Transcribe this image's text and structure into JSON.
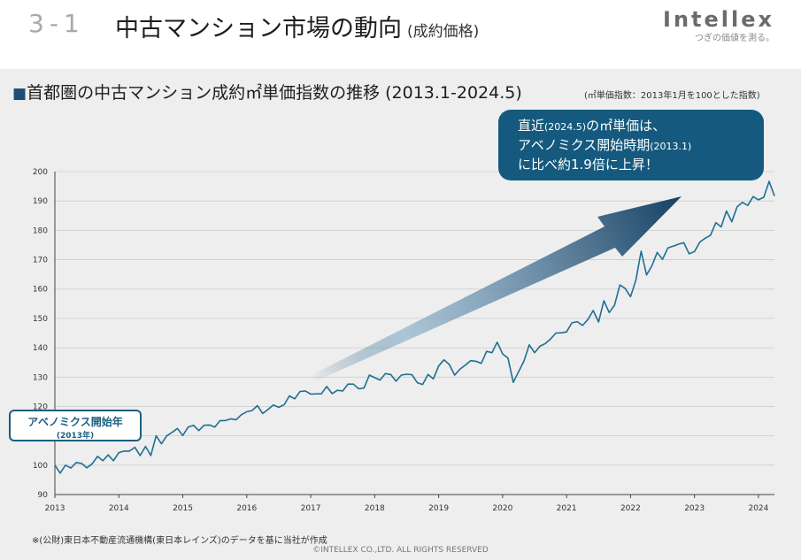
{
  "header": {
    "section_number": "3-1",
    "section_title": "中古マンション市場の動向",
    "section_subtitle": "(成約価格)",
    "logo_text": "Intellex",
    "logo_tagline": "つぎの価値を測る。"
  },
  "chart_title": "首都圏の中古マンション成約㎡単価指数の推移 (2013.1-2024.5)",
  "chart_note": "(㎡単価指数：2013年1月を100とした指数)",
  "callout": {
    "line1": "直近",
    "line1_small": "(2024.5)",
    "line1_rest": "の㎡単価は、",
    "line2": "アベノミクス開始時期",
    "line2_small": "(2013.1)",
    "line3": "に比べ約1.9倍に上昇！"
  },
  "abenomics_box": {
    "label": "アベノミクス開始年",
    "sublabel": "(2013年)"
  },
  "footnote": "※(公財)東日本不動産流通機構(東日本レインズ)のデータを基に当社が作成",
  "copyright": "©INTELLEX CO.,LTD. ALL RIGHTS RESERVED",
  "colors": {
    "line": "#1f6f92",
    "accent": "#155a7e",
    "panel": "#eeeeee",
    "grid": "#cccccc"
  },
  "chart_data": {
    "type": "line",
    "title": "首都圏の中古マンション成約㎡単価指数の推移 (2013.1-2024.5)",
    "xlabel": "",
    "ylabel": "",
    "ylim": [
      90,
      200
    ],
    "yticks": [
      90,
      100,
      110,
      120,
      130,
      140,
      150,
      160,
      170,
      180,
      190,
      200
    ],
    "xticks": [
      "2013",
      "2014",
      "2015",
      "2016",
      "2017",
      "2018",
      "2019",
      "2020",
      "2021",
      "2022",
      "2023",
      "2024"
    ],
    "x_start": "2013-01",
    "series": [
      {
        "name": "成約㎡単価指数",
        "values": [
          100.0,
          97.3,
          100.0,
          99.0,
          100.9,
          100.6,
          99.1,
          100.5,
          103.0,
          101.5,
          103.5,
          101.5,
          104.3,
          104.8,
          104.8,
          106.1,
          103.3,
          106.4,
          103.3,
          110.0,
          107.3,
          110.0,
          111.2,
          112.5,
          110.1,
          113.0,
          113.6,
          111.8,
          113.6,
          113.7,
          113.0,
          115.2,
          115.2,
          115.8,
          115.5,
          117.2,
          118.2,
          118.6,
          120.3,
          117.6,
          119.0,
          120.5,
          119.7,
          120.6,
          123.6,
          122.6,
          125.1,
          125.3,
          124.2,
          124.3,
          124.3,
          126.8,
          124.4,
          125.5,
          125.3,
          127.6,
          127.6,
          126.0,
          126.3,
          130.7,
          129.8,
          129.0,
          131.2,
          130.9,
          128.6,
          130.7,
          131.0,
          130.8,
          128.1,
          127.5,
          130.9,
          129.4,
          133.8,
          135.9,
          134.3,
          130.7,
          132.7,
          134.1,
          135.6,
          135.4,
          134.7,
          138.8,
          138.3,
          141.9,
          137.9,
          136.5,
          128.2,
          131.8,
          135.5,
          141.0,
          138.3,
          140.5,
          141.4,
          143.0,
          145.0,
          145.1,
          145.4,
          148.5,
          148.9,
          147.6,
          149.6,
          152.7,
          148.8,
          156.0,
          152.0,
          154.5,
          161.4,
          160.2,
          157.4,
          163.0,
          172.9,
          164.8,
          167.9,
          172.5,
          170.1,
          174.0,
          174.6,
          175.3,
          175.8,
          172.0,
          172.8,
          176.0,
          177.3,
          178.3,
          182.6,
          181.2,
          186.6,
          182.9,
          188.0,
          189.5,
          188.5,
          191.5,
          190.4,
          191.3,
          196.7,
          191.7
        ]
      }
    ]
  }
}
